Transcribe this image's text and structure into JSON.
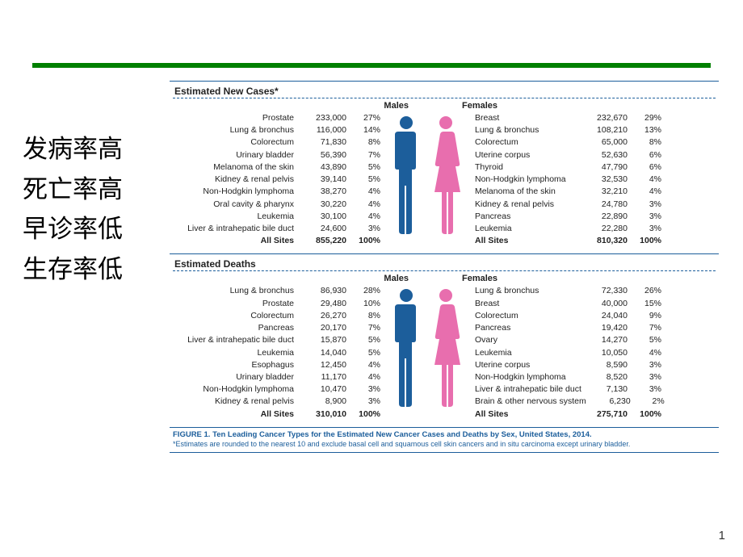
{
  "colors": {
    "green_bar": "#008000",
    "rule_blue": "#1c5e9b",
    "male_fill": "#1c5e9b",
    "female_fill": "#e86eae",
    "text": "#222222"
  },
  "side_labels": [
    "发病率高",
    "死亡率高",
    "早诊率低",
    "生存率低"
  ],
  "sections": [
    {
      "title": "Estimated New Cases*",
      "male_header": "Males",
      "female_header": "Females",
      "male": {
        "rows": [
          {
            "label": "Prostate",
            "num": "233,000",
            "pct": "27%"
          },
          {
            "label": "Lung & bronchus",
            "num": "116,000",
            "pct": "14%"
          },
          {
            "label": "Colorectum",
            "num": "71,830",
            "pct": "8%"
          },
          {
            "label": "Urinary bladder",
            "num": "56,390",
            "pct": "7%"
          },
          {
            "label": "Melanoma of the skin",
            "num": "43,890",
            "pct": "5%"
          },
          {
            "label": "Kidney & renal pelvis",
            "num": "39,140",
            "pct": "5%"
          },
          {
            "label": "Non-Hodgkin lymphoma",
            "num": "38,270",
            "pct": "4%"
          },
          {
            "label": "Oral cavity & pharynx",
            "num": "30,220",
            "pct": "4%"
          },
          {
            "label": "Leukemia",
            "num": "30,100",
            "pct": "4%"
          },
          {
            "label": "Liver & intrahepatic bile duct",
            "num": "24,600",
            "pct": "3%"
          }
        ],
        "total": {
          "label": "All Sites",
          "num": "855,220",
          "pct": "100%"
        }
      },
      "female": {
        "rows": [
          {
            "label": "Breast",
            "num": "232,670",
            "pct": "29%"
          },
          {
            "label": "Lung & bronchus",
            "num": "108,210",
            "pct": "13%"
          },
          {
            "label": "Colorectum",
            "num": "65,000",
            "pct": "8%"
          },
          {
            "label": "Uterine corpus",
            "num": "52,630",
            "pct": "6%"
          },
          {
            "label": "Thyroid",
            "num": "47,790",
            "pct": "6%"
          },
          {
            "label": "Non-Hodgkin lymphoma",
            "num": "32,530",
            "pct": "4%"
          },
          {
            "label": "Melanoma of the skin",
            "num": "32,210",
            "pct": "4%"
          },
          {
            "label": "Kidney & renal pelvis",
            "num": "24,780",
            "pct": "3%"
          },
          {
            "label": "Pancreas",
            "num": "22,890",
            "pct": "3%"
          },
          {
            "label": "Leukemia",
            "num": "22,280",
            "pct": "3%"
          }
        ],
        "total": {
          "label": "All Sites",
          "num": "810,320",
          "pct": "100%"
        }
      }
    },
    {
      "title": "Estimated Deaths",
      "male_header": "Males",
      "female_header": "Females",
      "male": {
        "rows": [
          {
            "label": "Lung & bronchus",
            "num": "86,930",
            "pct": "28%"
          },
          {
            "label": "Prostate",
            "num": "29,480",
            "pct": "10%"
          },
          {
            "label": "Colorectum",
            "num": "26,270",
            "pct": "8%"
          },
          {
            "label": "Pancreas",
            "num": "20,170",
            "pct": "7%"
          },
          {
            "label": "Liver & intrahepatic bile duct",
            "num": "15,870",
            "pct": "5%"
          },
          {
            "label": "Leukemia",
            "num": "14,040",
            "pct": "5%"
          },
          {
            "label": "Esophagus",
            "num": "12,450",
            "pct": "4%"
          },
          {
            "label": "Urinary bladder",
            "num": "11,170",
            "pct": "4%"
          },
          {
            "label": "Non-Hodgkin lymphoma",
            "num": "10,470",
            "pct": "3%"
          },
          {
            "label": "Kidney & renal pelvis",
            "num": "8,900",
            "pct": "3%"
          }
        ],
        "total": {
          "label": "All Sites",
          "num": "310,010",
          "pct": "100%"
        }
      },
      "female": {
        "rows": [
          {
            "label": "Lung & bronchus",
            "num": "72,330",
            "pct": "26%"
          },
          {
            "label": "Breast",
            "num": "40,000",
            "pct": "15%"
          },
          {
            "label": "Colorectum",
            "num": "24,040",
            "pct": "9%"
          },
          {
            "label": "Pancreas",
            "num": "19,420",
            "pct": "7%"
          },
          {
            "label": "Ovary",
            "num": "14,270",
            "pct": "5%"
          },
          {
            "label": "Leukemia",
            "num": "10,050",
            "pct": "4%"
          },
          {
            "label": "Uterine corpus",
            "num": "8,590",
            "pct": "3%"
          },
          {
            "label": "Non-Hodgkin lymphoma",
            "num": "8,520",
            "pct": "3%"
          },
          {
            "label": "Liver & intrahepatic bile duct",
            "num": "7,130",
            "pct": "3%"
          },
          {
            "label": "Brain & other nervous system",
            "num": "6,230",
            "pct": "2%"
          }
        ],
        "total": {
          "label": "All Sites",
          "num": "275,710",
          "pct": "100%"
        }
      }
    }
  ],
  "caption": {
    "title": "FIGURE 1. Ten Leading Cancer Types for the Estimated New Cancer Cases and Deaths by Sex, United States, 2014.",
    "note": "*Estimates are rounded to the nearest 10 and exclude basal cell and squamous cell skin cancers and in situ carcinoma except urinary bladder."
  },
  "page_number": "1"
}
